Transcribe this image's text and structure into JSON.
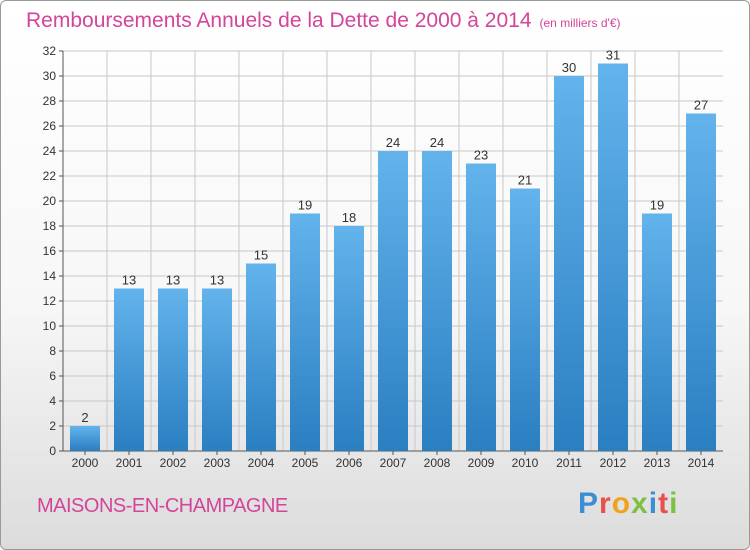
{
  "header": {
    "title": "Remboursements Annuels de la Dette de 2000 à 2014",
    "unit": "(en milliers d'€)"
  },
  "footer": {
    "commune": "MAISONS-EN-CHAMPAGNE",
    "logo": "Proxiti"
  },
  "colors": {
    "title": "#d4449a",
    "bar_top": "#63b3ec",
    "bar_bottom": "#2a7fc1",
    "grid": "#c8c8c8",
    "logo_letters": [
      "#3c8ed4",
      "#e8504a",
      "#f0a21f",
      "#7cc242",
      "#3c8ed4",
      "#e8504a",
      "#7cc242"
    ]
  },
  "chart_data": {
    "type": "bar",
    "categories": [
      "2000",
      "2001",
      "2002",
      "2003",
      "2004",
      "2005",
      "2006",
      "2007",
      "2008",
      "2009",
      "2010",
      "2011",
      "2012",
      "2013",
      "2014"
    ],
    "values": [
      2,
      13,
      13,
      13,
      15,
      19,
      18,
      24,
      24,
      23,
      21,
      30,
      31,
      19,
      27
    ],
    "data_labels": [
      "2",
      "13",
      "13",
      "13",
      "15",
      "19",
      "18",
      "24",
      "24",
      "23",
      "21",
      "30",
      "31",
      "19",
      "27"
    ],
    "title": "Remboursements Annuels de la Dette de 2000 à 2014",
    "xlabel": "",
    "ylabel": "",
    "ylim": [
      0,
      32
    ],
    "yticks": [
      0,
      2,
      4,
      6,
      8,
      10,
      12,
      14,
      16,
      18,
      20,
      22,
      24,
      26,
      28,
      30,
      32
    ],
    "grid": true,
    "legend": "none"
  }
}
